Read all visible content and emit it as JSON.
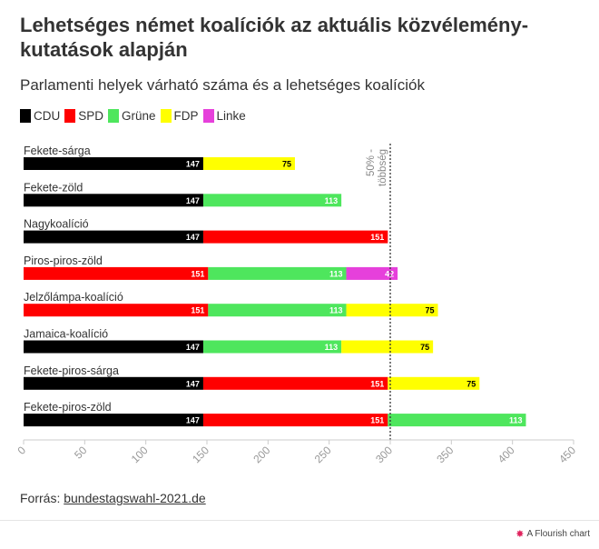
{
  "header": {
    "title": "Lehetséges német koalíciók az aktuális közvélemény-kutatások alapján",
    "subtitle": "Parlamenti helyek várható száma és a lehetséges koalíciók"
  },
  "legend": [
    {
      "label": "CDU",
      "color": "#000000"
    },
    {
      "label": "SPD",
      "color": "#ff0000"
    },
    {
      "label": "Grüne",
      "color": "#4ee65d"
    },
    {
      "label": "FDP",
      "color": "#ffff00"
    },
    {
      "label": "Linke",
      "color": "#e640db"
    }
  ],
  "chart_data": {
    "type": "bar",
    "orientation": "horizontal",
    "stacked": true,
    "categories": [
      "Fekete-sárga",
      "Fekete-zöld",
      "Nagykoalíció",
      "Piros-piros-zöld",
      "Jelzőlámpa-koalíció",
      "Jamaica-koalíció",
      "Fekete-piros-sárga",
      "Fekete-piros-zöld"
    ],
    "series": [
      {
        "name": "CDU",
        "color": "#000000",
        "values": [
          147,
          147,
          147,
          null,
          null,
          147,
          147,
          147
        ]
      },
      {
        "name": "SPD",
        "color": "#ff0000",
        "values": [
          null,
          null,
          151,
          151,
          151,
          null,
          151,
          151
        ]
      },
      {
        "name": "Grüne",
        "color": "#4ee65d",
        "values": [
          null,
          113,
          null,
          113,
          113,
          113,
          null,
          113
        ]
      },
      {
        "name": "FDP",
        "color": "#ffff00",
        "values": [
          75,
          null,
          null,
          null,
          75,
          75,
          75,
          null
        ]
      },
      {
        "name": "Linke",
        "color": "#e640db",
        "values": [
          null,
          null,
          null,
          42,
          null,
          null,
          null,
          null
        ]
      }
    ],
    "xlim": [
      0,
      450
    ],
    "xticks": [
      "0",
      "50",
      "100",
      "150",
      "200",
      "250",
      "300",
      "350",
      "400",
      "450"
    ],
    "reference_line": {
      "value": 300,
      "label_line1": "50% -",
      "label_line2": "többség"
    }
  },
  "source": {
    "prefix": "Forrás: ",
    "link_text": "bundestagswahl-2021.de"
  },
  "footer": {
    "credit": "A Flourish chart"
  }
}
